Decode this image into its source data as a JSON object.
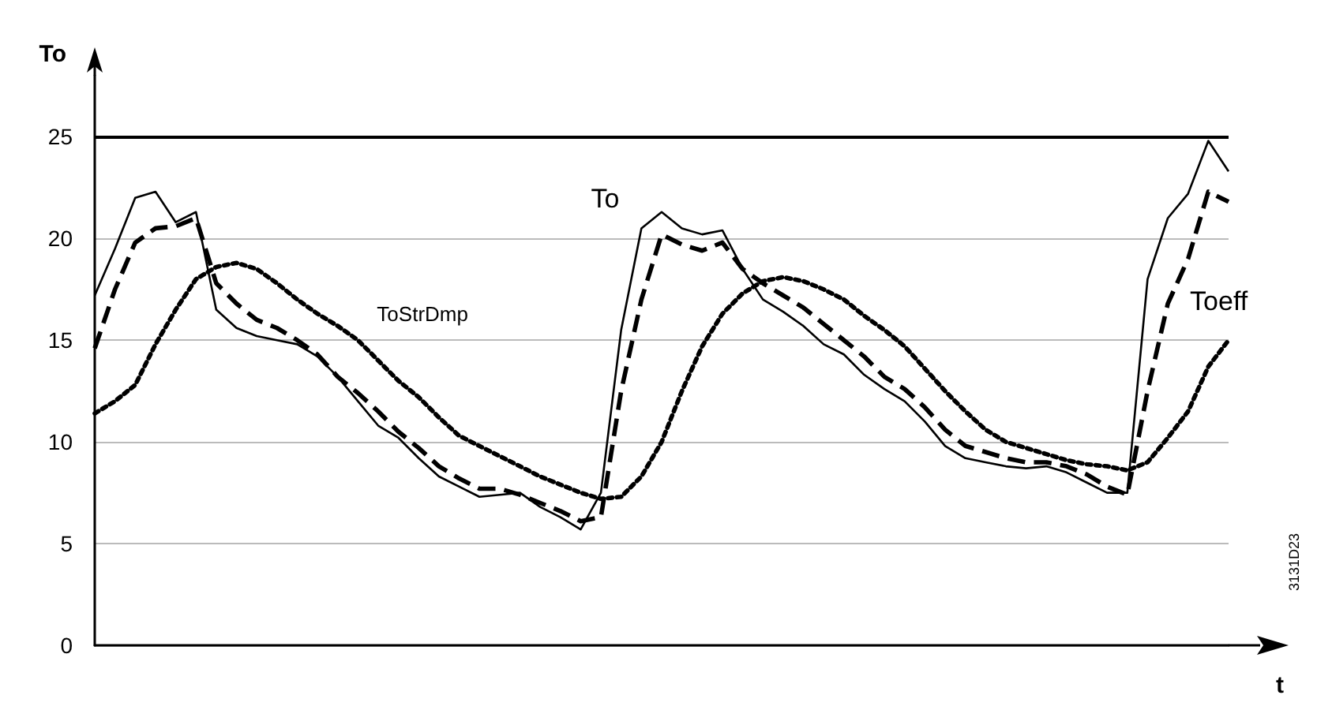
{
  "chart_data": {
    "type": "line",
    "ylabel": "To",
    "xlabel": "t",
    "categories": [
      null,
      null,
      null,
      null,
      null,
      null,
      null,
      null,
      null,
      null,
      null,
      null,
      null,
      null,
      null,
      null,
      null,
      null,
      null,
      null,
      null,
      null,
      null,
      null,
      null,
      null,
      null,
      null,
      null,
      null,
      null,
      null,
      null,
      null,
      null,
      null,
      null,
      null,
      null,
      null,
      null,
      null,
      null,
      null,
      null,
      null,
      null,
      null,
      null,
      null,
      null,
      null,
      null,
      null,
      null,
      null,
      null
    ],
    "ylim": [
      0,
      28
    ],
    "yticks": [
      0,
      5,
      10,
      15,
      20,
      25
    ],
    "grid": "y",
    "tick_labels": "y",
    "marker": "none",
    "ref_lines": [
      {
        "axis": "y",
        "value": 25,
        "label": null,
        "color": "#000000"
      }
    ],
    "series": [
      {
        "name": "To",
        "color": "#000000",
        "line_style": "solid",
        "values": [
          17.2,
          19.5,
          22,
          22.3,
          20.8,
          21.3,
          16.5,
          15.6,
          15.2,
          15,
          14.8,
          14.2,
          13.2,
          12,
          10.8,
          10.2,
          9.2,
          8.3,
          7.8,
          7.3,
          7.4,
          7.5,
          6.8,
          6.3,
          5.7,
          7.5,
          15.5,
          20.5,
          21.3,
          20.5,
          20.2,
          20.4,
          18.5,
          17,
          16.4,
          15.7,
          14.8,
          14.3,
          13.3,
          12.6,
          12,
          11,
          9.8,
          9.2,
          9,
          8.8,
          8.7,
          8.8,
          8.5,
          8,
          7.5,
          7.5,
          18,
          21,
          22.2,
          24.8,
          23.3
        ]
      },
      {
        "name": "Toeff",
        "color": "#000000",
        "line_style": "dashed",
        "values": [
          14.6,
          17.5,
          19.8,
          20.5,
          20.6,
          21,
          17.8,
          16.8,
          16,
          15.6,
          15,
          14.3,
          13.2,
          12.4,
          11.5,
          10.5,
          9.7,
          8.8,
          8.2,
          7.7,
          7.7,
          7.4,
          7,
          6.6,
          6.1,
          6.3,
          12.5,
          17,
          20.2,
          19.7,
          19.4,
          19.8,
          18.5,
          17.8,
          17.2,
          16.6,
          15.8,
          15,
          14.2,
          13.2,
          12.6,
          11.7,
          10.6,
          9.8,
          9.5,
          9.2,
          9,
          9,
          8.8,
          8.4,
          7.8,
          7.4,
          12.5,
          16.8,
          19,
          22.3,
          21.8
        ]
      },
      {
        "name": "ToStrDmp",
        "color": "#000000",
        "line_style": "dotted",
        "values": [
          11.4,
          12,
          12.8,
          14.8,
          16.5,
          18,
          18.6,
          18.8,
          18.5,
          17.8,
          17,
          16.3,
          15.7,
          15,
          14,
          13,
          12.2,
          11.2,
          10.3,
          9.8,
          9.3,
          8.8,
          8.3,
          7.9,
          7.5,
          7.2,
          7.3,
          8.3,
          10,
          12.5,
          14.7,
          16.3,
          17.3,
          17.9,
          18.1,
          17.9,
          17.5,
          17,
          16.2,
          15.5,
          14.7,
          13.6,
          12.5,
          11.5,
          10.6,
          10,
          9.7,
          9.4,
          9.1,
          8.9,
          8.8,
          8.6,
          9,
          10.2,
          11.5,
          13.7,
          15
        ]
      }
    ],
    "annotations": [
      "3131D23"
    ]
  }
}
